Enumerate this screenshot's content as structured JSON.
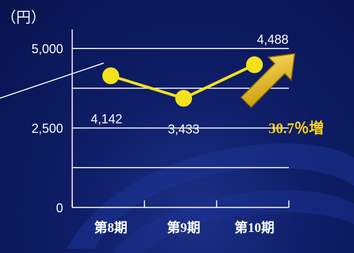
{
  "chart_data": {
    "type": "line",
    "unit_label": "（円）",
    "categories": [
      "第8期",
      "第9期",
      "第10期"
    ],
    "series": [
      {
        "values": [
          4142,
          3433,
          4488
        ],
        "color": "#f2e21e"
      }
    ],
    "data_labels": [
      "4,142",
      "3,433",
      "4,488"
    ],
    "y_ticks": [
      {
        "value": 0,
        "label": "0"
      },
      {
        "value": 2500,
        "label": "2,500"
      },
      {
        "value": 5000,
        "label": "5,000"
      }
    ],
    "ylim": [
      0,
      5600
    ],
    "grid": true,
    "annotation": {
      "text": "30.7％増",
      "color": "#ffd21a"
    },
    "colors": {
      "background": "#0d1b63",
      "grid": "#ffffff",
      "text": "#ffffff",
      "arrow": "#e6b400"
    }
  }
}
